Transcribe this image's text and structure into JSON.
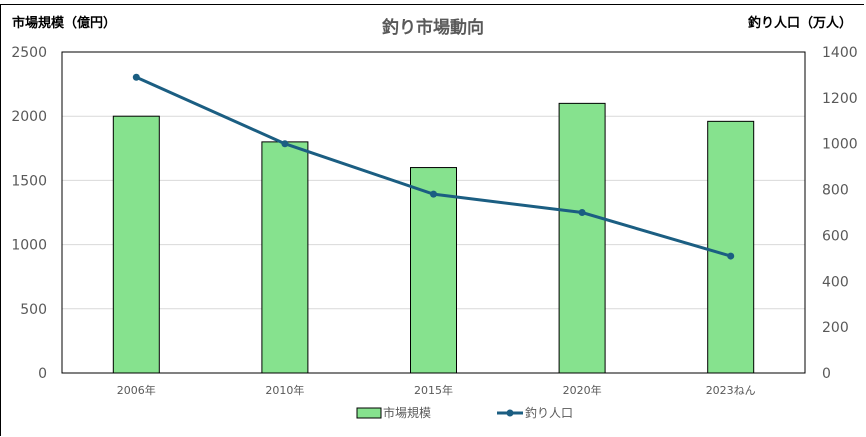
{
  "chart_data": {
    "type": "bar+line",
    "title": "釣り市場動向",
    "categories": [
      "2006年",
      "2010年",
      "2015年",
      "2020年",
      "2023ねん"
    ],
    "y_left": {
      "label": "市場規模（億円）",
      "range": [
        0,
        2500
      ],
      "ticks": [
        0,
        500,
        1000,
        1500,
        2000,
        2500
      ]
    },
    "y_right": {
      "label": "釣り人口（万人）",
      "range": [
        0,
        1400
      ],
      "ticks": [
        0,
        200,
        400,
        600,
        800,
        1000,
        1200,
        1400
      ]
    },
    "series": [
      {
        "name": "市場規模",
        "type": "bar",
        "axis": "left",
        "color": "#86E28E",
        "values": [
          2000,
          1800,
          1600,
          2100,
          1960
        ]
      },
      {
        "name": "釣り人口",
        "type": "line",
        "axis": "right",
        "color": "#1B5E82",
        "values": [
          1290,
          1000,
          780,
          700,
          510
        ]
      }
    ],
    "grid": true,
    "legend": "bottom"
  }
}
